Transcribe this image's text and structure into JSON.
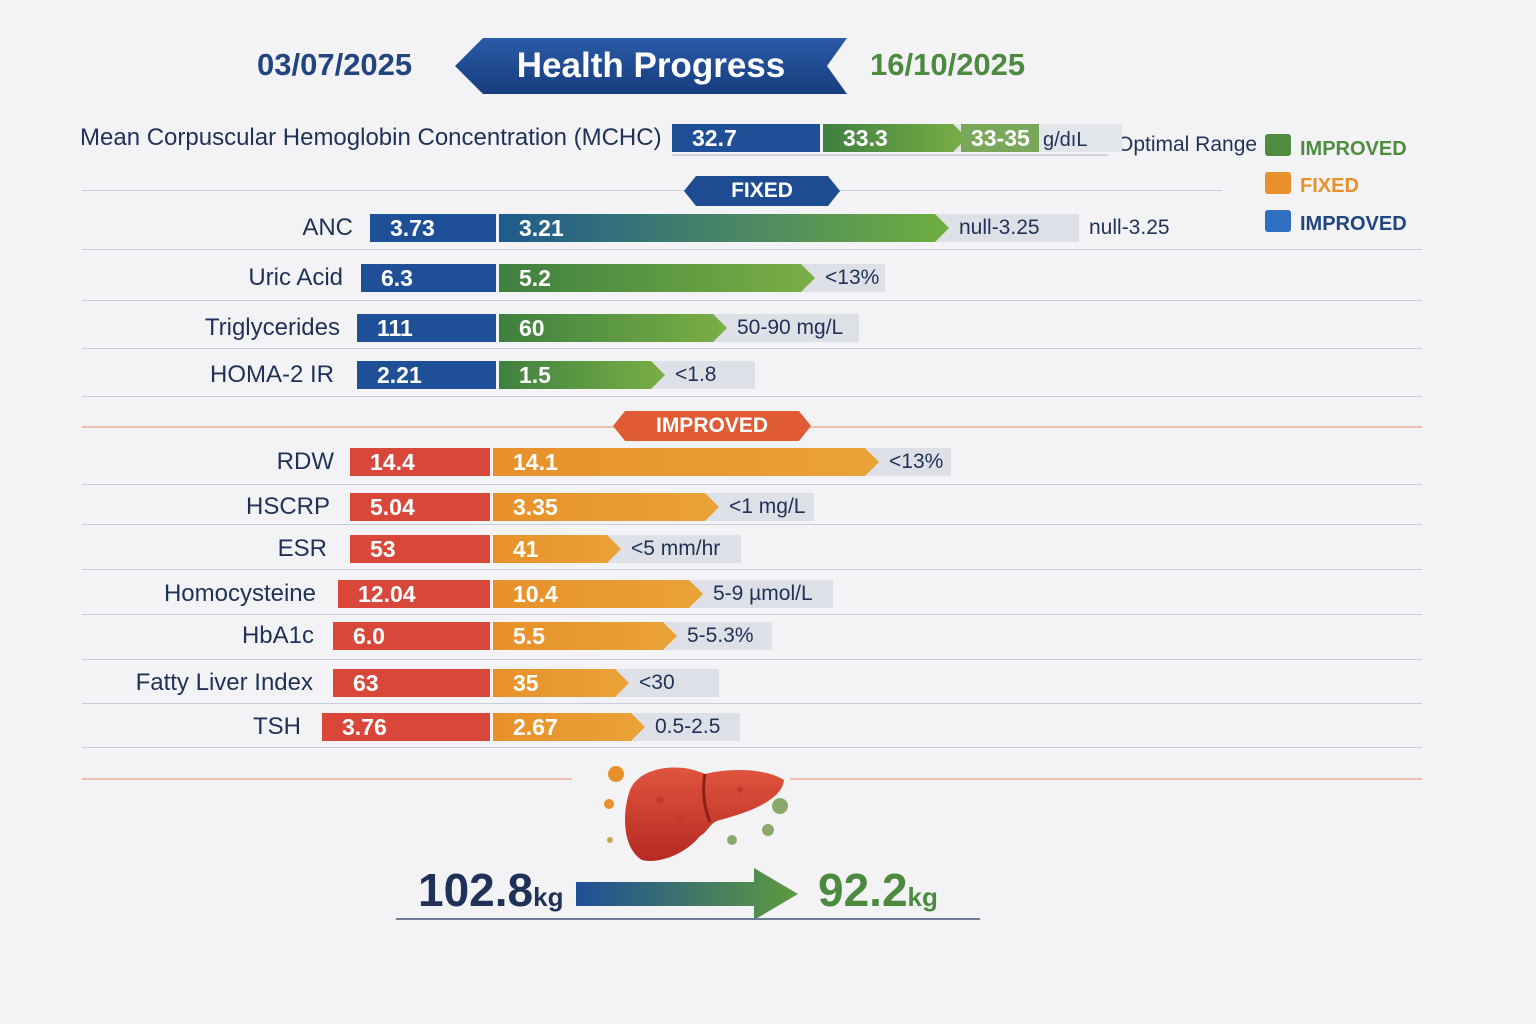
{
  "header": {
    "date_start": "03/07/2025",
    "title": "Health Progress",
    "date_end": "16/10/2025"
  },
  "colors": {
    "blue": "#1f4f97",
    "green": "#4f8c3f",
    "red": "#d9473b",
    "orange": "#e8902a",
    "range_bg": "#dde0e6"
  },
  "legend": {
    "optimal_label": "Optimal Range",
    "items": [
      {
        "label": "IMPROVED",
        "color": "#4f8c3f"
      },
      {
        "label": "FIXED",
        "color": "#e8902a"
      },
      {
        "label": "IMPROVED",
        "color": "#2f6fbf"
      }
    ]
  },
  "sections": {
    "fixed_tag": "FIXED",
    "improved_tag": "IMPROVED"
  },
  "chart_data": {
    "type": "bar",
    "title": "Health Progress",
    "rows": [
      {
        "marker": "Mean Corpuscular Hemoglobin Concentration (MCHC)",
        "before": "32.7",
        "after": "33.3",
        "range": "33-35",
        "unit": "g/dıL",
        "group": "top"
      },
      {
        "marker": "ANC",
        "before": "3.73",
        "after": "3.21",
        "range": "null-3.25",
        "range_note": "null-3.25",
        "group": "fixed"
      },
      {
        "marker": "Uric Acid",
        "before": "6.3",
        "after": "5.2",
        "range": "<13%",
        "group": "fixed"
      },
      {
        "marker": "Triglycerides",
        "before": "111",
        "after": "60",
        "range": "50-90 mg/L",
        "group": "fixed"
      },
      {
        "marker": "HOMA-2 IR",
        "before": "2.21",
        "after": "1.5",
        "range": "<1.8",
        "group": "fixed"
      },
      {
        "marker": "RDW",
        "before": "14.4",
        "after": "14.1",
        "range": "<13%",
        "group": "improved"
      },
      {
        "marker": "HSCRP",
        "before": "5.04",
        "after": "3.35",
        "range": "<1 mg/L",
        "group": "improved"
      },
      {
        "marker": "ESR",
        "before": "53",
        "after": "41",
        "range": "<5 mm/hr",
        "group": "improved"
      },
      {
        "marker": "Homocysteine",
        "before": "12.04",
        "after": "10.4",
        "range": "5-9 µmol/L",
        "group": "improved"
      },
      {
        "marker": "HbA1c",
        "before": "6.0",
        "after": "5.5",
        "range": "5-5.3%",
        "group": "improved"
      },
      {
        "marker": "Fatty Liver Index",
        "before": "63",
        "after": "35",
        "range": "<30",
        "group": "improved"
      },
      {
        "marker": "TSH",
        "before": "3.76",
        "after": "2.67",
        "range": "0.5-2.5",
        "group": "improved"
      }
    ]
  },
  "weight": {
    "before_value": "102.8",
    "after_value": "92.2",
    "unit": "kg"
  }
}
